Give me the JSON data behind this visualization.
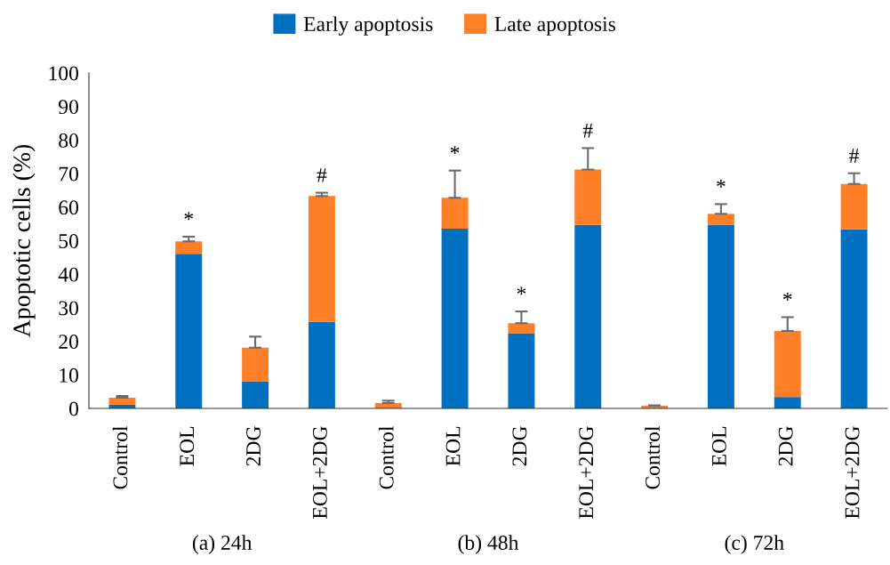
{
  "chart_data": {
    "type": "bar",
    "stacked": true,
    "ylabel": "Apoptotic cells (%)",
    "categories": [
      "Control",
      "EOL",
      "2DG",
      "EOL+2DG",
      "Control",
      "EOL",
      "2DG",
      "EOL+2DG",
      "Control",
      "EOL",
      "2DG",
      "EOL+2DG"
    ],
    "series": [
      {
        "name": "Early apoptosis",
        "color": "#0070c0",
        "values": [
          1.1,
          46.1,
          8.1,
          25.8,
          null,
          53.6,
          22.4,
          54.7,
          null,
          54.8,
          3.4,
          53.4
        ]
      },
      {
        "name": "Late apoptosis",
        "color": "#ff7f27",
        "values": [
          2.1,
          3.7,
          10.0,
          37.5,
          1.6,
          9.2,
          3.0,
          16.5,
          0.8,
          3.2,
          19.7,
          13.5
        ],
        "errors": [
          0.5,
          1.4,
          3.3,
          1.0,
          0.7,
          8.1,
          3.5,
          6.4,
          0.1,
          2.9,
          4.1,
          3.2
        ],
        "value_labels": [
          null,
          "*",
          null,
          "#",
          null,
          "*",
          "*",
          "#",
          null,
          "*",
          "*",
          "#"
        ]
      }
    ],
    "annotations": [
      "(a) 24h",
      "(b) 48h",
      "(c) 72h"
    ],
    "ylim": [
      0,
      100
    ],
    "yticks": [
      0,
      10,
      20,
      30,
      40,
      50,
      60,
      70,
      80,
      90,
      100
    ],
    "legend": "top",
    "grid": false
  }
}
